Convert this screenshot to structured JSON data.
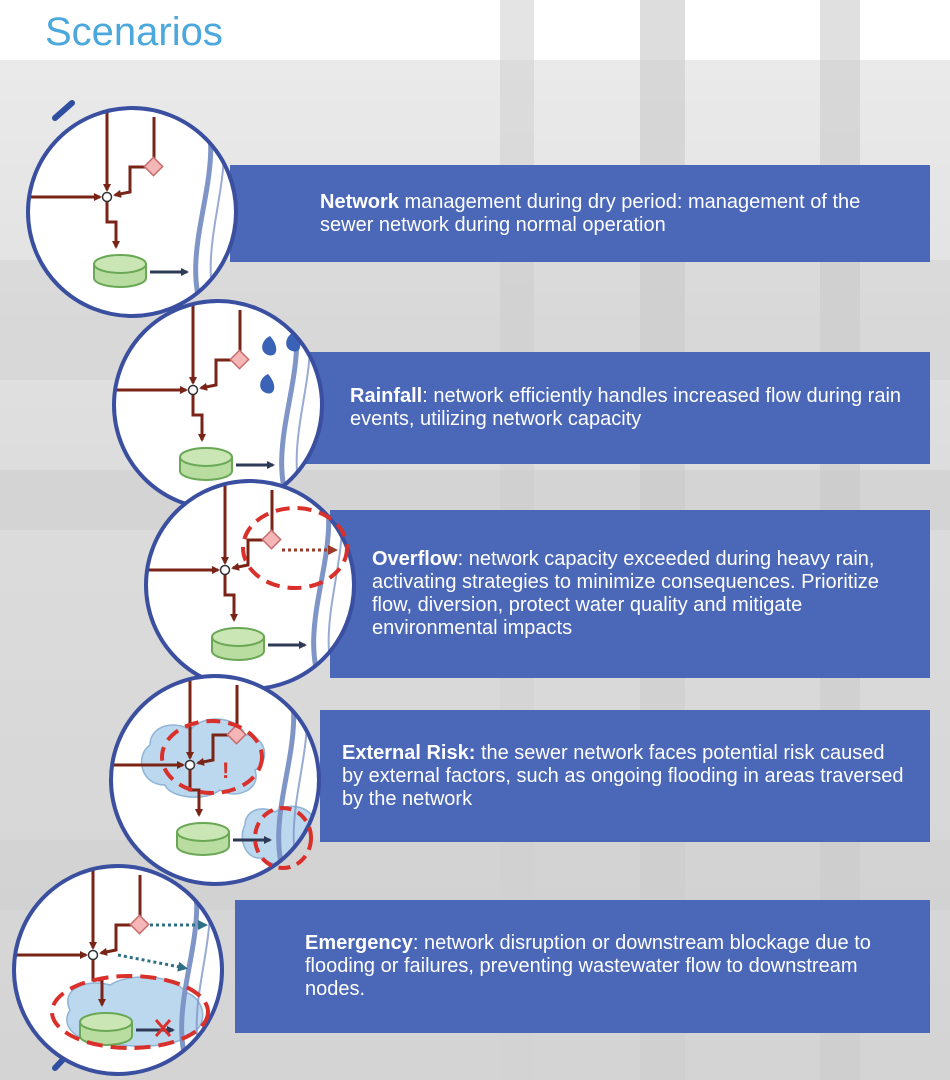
{
  "title": "Scenarios",
  "scenarios": [
    {
      "heading": "Network",
      "text": " management during dry period: management of the sewer network during normal operation"
    },
    {
      "heading": "Rainfall",
      "text": ": network efficiently handles increased flow during rain events, utilizing network capacity"
    },
    {
      "heading": "Overflow",
      "text": ": network capacity exceeded during heavy rain, activating strategies to minimize consequences. Prioritize flow, diversion, protect water quality and mitigate environmental impacts"
    },
    {
      "heading": "External Risk:",
      "text": " the sewer network faces potential risk caused by external factors, such as ongoing flooding in areas traversed by the network"
    },
    {
      "heading": "Emergency",
      "text": ": network disruption or downstream blockage due to flooding or failures, preventing wastewater flow to downstream nodes."
    }
  ],
  "colors": {
    "card_fill": "#4b67b8",
    "title": "#4aa8dc",
    "pipe": "#7a2418",
    "circle_border": "#3a4fa0",
    "river": "#7f95c8",
    "plant_fill": "#b9dca1",
    "plant_stroke": "#6aa855",
    "node": "#f4b6b6",
    "risk": "#d9302b",
    "flood": "#bcd8ee"
  }
}
